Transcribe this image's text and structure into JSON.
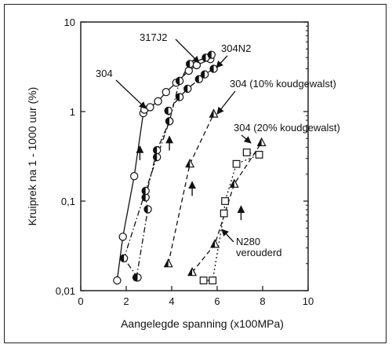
{
  "chart_data": {
    "type": "scatter",
    "title": "",
    "xlabel": "Aangelegde spanning (x100MPa)",
    "ylabel": "Kruiprek na 1 - 1000 uur (%)",
    "xlim": [
      0,
      10
    ],
    "ylim": [
      0.01,
      10
    ],
    "yscale": "log",
    "grid": false,
    "x_ticks": [
      {
        "v": 0,
        "label": "0"
      },
      {
        "v": 2,
        "label": "2"
      },
      {
        "v": 4,
        "label": "4"
      },
      {
        "v": 6,
        "label": "6"
      },
      {
        "v": 8,
        "label": "8"
      },
      {
        "v": 10,
        "label": "10"
      }
    ],
    "y_ticks": [
      {
        "v": 0.01,
        "label": "0,01"
      },
      {
        "v": 0.1,
        "label": "0,1"
      },
      {
        "v": 1,
        "label": "1"
      },
      {
        "v": 10,
        "label": "10"
      }
    ],
    "series": [
      {
        "name": "304",
        "marker": "circle-open",
        "line": "solid",
        "points": [
          [
            1.6,
            0.013
          ],
          [
            1.85,
            0.04
          ],
          [
            2.35,
            0.19
          ],
          [
            2.75,
            0.96
          ],
          [
            2.8,
            1.05
          ],
          [
            3.05,
            1.12
          ],
          [
            3.4,
            1.3
          ],
          [
            3.75,
            1.65
          ],
          [
            4.2,
            2.1
          ],
          [
            4.75,
            2.85
          ],
          [
            5.1,
            3.3
          ],
          [
            5.7,
            3.85
          ]
        ]
      },
      {
        "name": "317J2",
        "marker": "circle-half",
        "line": "dashdot",
        "points": [
          [
            2.45,
            0.014
          ],
          [
            2.95,
            0.081
          ],
          [
            2.85,
            0.11
          ],
          [
            3.35,
            0.37
          ],
          [
            3.9,
            0.78
          ],
          [
            3.85,
            1.02
          ],
          [
            4.35,
            1.45
          ],
          [
            4.7,
            1.8
          ],
          [
            5.2,
            2.3
          ],
          [
            5.45,
            2.6
          ],
          [
            5.85,
            3.0
          ]
        ]
      },
      {
        "name": "304N2",
        "marker": "circle-half",
        "line": "dashdot",
        "points": [
          [
            1.9,
            0.023
          ],
          [
            2.5,
            0.014
          ],
          [
            2.85,
            0.13
          ],
          [
            3.35,
            0.31
          ],
          [
            3.9,
            0.78
          ],
          [
            4.35,
            2.2
          ],
          [
            4.8,
            3.4
          ],
          [
            5.5,
            4.0
          ],
          [
            5.75,
            4.3
          ]
        ]
      },
      {
        "name": "304 (10% koudgewalst)",
        "marker": "triangle-half",
        "line": "dashed",
        "points": [
          [
            3.85,
            0.02
          ],
          [
            4.8,
            0.26
          ],
          [
            5.85,
            0.94
          ]
        ]
      },
      {
        "name": "304 (20% koudgewalst)",
        "marker": "triangle-half",
        "line": "dashed",
        "points": [
          [
            4.9,
            0.016
          ],
          [
            5.9,
            0.033
          ],
          [
            6.75,
            0.155
          ],
          [
            7.95,
            0.45
          ]
        ]
      },
      {
        "name": "N280 verouderd",
        "marker": "square-open",
        "line": "dotted",
        "points": [
          [
            5.4,
            0.013
          ],
          [
            5.8,
            0.013
          ],
          [
            6.3,
            0.073
          ],
          [
            6.35,
            0.1
          ],
          [
            6.85,
            0.26
          ],
          [
            7.3,
            0.35
          ],
          [
            7.85,
            0.33
          ]
        ]
      }
    ],
    "annotations": {
      "label_304": "304",
      "label_317J2": "317J2",
      "label_304N2": "304N2",
      "label_304_10": "304 (10% koudgewalst)",
      "label_304_20": "304 (20% koudgewalst)",
      "label_N280_line1": "N280",
      "label_N280_line2": "verouderd"
    },
    "up_arrows": [
      [
        2.6,
        0.35
      ],
      [
        3.9,
        0.45
      ],
      [
        4.9,
        0.14
      ],
      [
        7.05,
        0.075
      ]
    ]
  }
}
